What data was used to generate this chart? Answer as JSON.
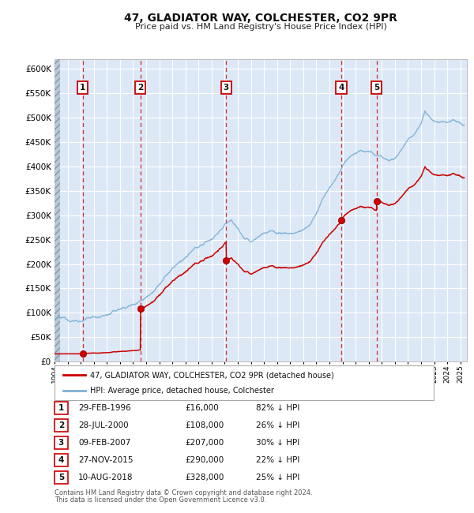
{
  "title": "47, GLADIATOR WAY, COLCHESTER, CO2 9PR",
  "subtitle": "Price paid vs. HM Land Registry's House Price Index (HPI)",
  "footer1": "Contains HM Land Registry data © Crown copyright and database right 2024.",
  "footer2": "This data is licensed under the Open Government Licence v3.0.",
  "legend_red": "47, GLADIATOR WAY, COLCHESTER, CO2 9PR (detached house)",
  "legend_blue": "HPI: Average price, detached house, Colchester",
  "sales": [
    {
      "num": 1,
      "date_label": "29-FEB-1996",
      "price": 16000,
      "pct": "82% ↓ HPI",
      "year": 1996.16
    },
    {
      "num": 2,
      "date_label": "28-JUL-2000",
      "price": 108000,
      "pct": "26% ↓ HPI",
      "year": 2000.57
    },
    {
      "num": 3,
      "date_label": "09-FEB-2007",
      "price": 207000,
      "pct": "30% ↓ HPI",
      "year": 2007.11
    },
    {
      "num": 4,
      "date_label": "27-NOV-2015",
      "price": 290000,
      "pct": "22% ↓ HPI",
      "year": 2015.91
    },
    {
      "num": 5,
      "date_label": "10-AUG-2018",
      "price": 328000,
      "pct": "25% ↓ HPI",
      "year": 2018.61
    }
  ],
  "ylim": [
    0,
    620000
  ],
  "xlim_start": 1994.0,
  "xlim_end": 2025.5,
  "plot_bg": "#dce8f5",
  "grid_color": "#ffffff",
  "red_line_color": "#cc0000",
  "blue_line_color": "#7eb0d5",
  "hpi_anchors": [
    [
      1994.0,
      88000
    ],
    [
      1995.0,
      84000
    ],
    [
      1996.0,
      85000
    ],
    [
      1997.0,
      91000
    ],
    [
      1998.0,
      97000
    ],
    [
      1999.0,
      108000
    ],
    [
      2000.0,
      118000
    ],
    [
      2001.0,
      138000
    ],
    [
      2002.0,
      168000
    ],
    [
      2003.0,
      198000
    ],
    [
      2004.0,
      220000
    ],
    [
      2005.0,
      238000
    ],
    [
      2006.0,
      255000
    ],
    [
      2007.0,
      285000
    ],
    [
      2007.5,
      295000
    ],
    [
      2008.0,
      278000
    ],
    [
      2008.5,
      258000
    ],
    [
      2009.0,
      248000
    ],
    [
      2009.5,
      258000
    ],
    [
      2010.0,
      268000
    ],
    [
      2010.5,
      272000
    ],
    [
      2011.0,
      268000
    ],
    [
      2011.5,
      268000
    ],
    [
      2012.0,
      268000
    ],
    [
      2012.5,
      270000
    ],
    [
      2013.0,
      275000
    ],
    [
      2013.5,
      285000
    ],
    [
      2014.0,
      308000
    ],
    [
      2014.5,
      335000
    ],
    [
      2015.0,
      358000
    ],
    [
      2015.5,
      375000
    ],
    [
      2016.0,
      398000
    ],
    [
      2016.5,
      418000
    ],
    [
      2017.0,
      428000
    ],
    [
      2017.5,
      432000
    ],
    [
      2018.0,
      428000
    ],
    [
      2018.5,
      422000
    ],
    [
      2019.0,
      418000
    ],
    [
      2019.5,
      415000
    ],
    [
      2020.0,
      418000
    ],
    [
      2020.5,
      435000
    ],
    [
      2021.0,
      455000
    ],
    [
      2021.5,
      472000
    ],
    [
      2022.0,
      495000
    ],
    [
      2022.3,
      520000
    ],
    [
      2022.6,
      510000
    ],
    [
      2023.0,
      498000
    ],
    [
      2023.5,
      492000
    ],
    [
      2024.0,
      495000
    ],
    [
      2024.5,
      505000
    ],
    [
      2025.0,
      502000
    ],
    [
      2025.3,
      498000
    ]
  ]
}
